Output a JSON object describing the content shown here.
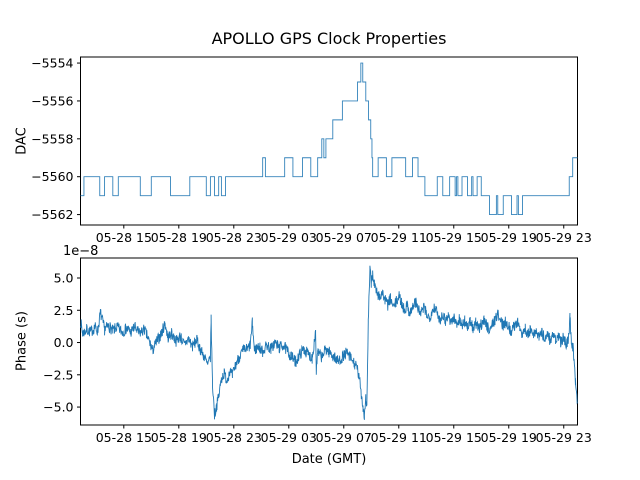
{
  "figure": {
    "title": "APOLLO GPS Clock Properties",
    "line_color": "#1f77b4",
    "background": "#ffffff"
  },
  "chart_data": [
    {
      "type": "line",
      "subtype": "step-post",
      "title": "APOLLO GPS Clock Properties",
      "ylabel": "DAC",
      "x_unit": "hours since 05-28 00:00 GMT",
      "xlim": [
        11.85,
        48.0
      ],
      "ylim": [
        -5562.55,
        -5553.68
      ],
      "grid": false,
      "legend": "none",
      "line_color": "#1f77b4",
      "yticks": [
        {
          "v": -5554,
          "label": "−5554"
        },
        {
          "v": -5556,
          "label": "−5556"
        },
        {
          "v": -5558,
          "label": "−5558"
        },
        {
          "v": -5560,
          "label": "−5560"
        },
        {
          "v": -5562,
          "label": "−5562"
        }
      ],
      "xticks": [
        {
          "v": 15,
          "label": "05-28 15"
        },
        {
          "v": 19,
          "label": "05-28 19"
        },
        {
          "v": 23,
          "label": "05-28 23"
        },
        {
          "v": 27,
          "label": "05-29 03"
        },
        {
          "v": 31,
          "label": "05-29 07"
        },
        {
          "v": 35,
          "label": "05-29 11"
        },
        {
          "v": 39,
          "label": "05-29 15"
        },
        {
          "v": 43,
          "label": "05-29 19"
        },
        {
          "v": 47,
          "label": "05-29 23"
        }
      ],
      "points": [
        [
          11.85,
          -5561
        ],
        [
          12.1,
          -5560
        ],
        [
          13.25,
          -5561
        ],
        [
          13.6,
          -5560
        ],
        [
          14.2,
          -5561
        ],
        [
          14.6,
          -5560
        ],
        [
          16.2,
          -5561
        ],
        [
          17.0,
          -5560
        ],
        [
          18.4,
          -5561
        ],
        [
          19.8,
          -5560
        ],
        [
          21.0,
          -5561
        ],
        [
          21.3,
          -5560
        ],
        [
          21.6,
          -5561
        ],
        [
          21.9,
          -5560
        ],
        [
          22.1,
          -5561
        ],
        [
          22.4,
          -5560
        ],
        [
          25.1,
          -5559
        ],
        [
          25.3,
          -5560
        ],
        [
          26.7,
          -5559
        ],
        [
          27.3,
          -5560
        ],
        [
          28.0,
          -5559
        ],
        [
          28.6,
          -5560
        ],
        [
          29.1,
          -5559
        ],
        [
          29.4,
          -5558
        ],
        [
          29.55,
          -5559
        ],
        [
          29.7,
          -5558
        ],
        [
          30.2,
          -5557
        ],
        [
          30.9,
          -5556
        ],
        [
          32.0,
          -5555
        ],
        [
          32.24,
          -5554
        ],
        [
          32.38,
          -5555
        ],
        [
          32.6,
          -5556
        ],
        [
          32.8,
          -5557
        ],
        [
          32.96,
          -5558
        ],
        [
          33.05,
          -5559
        ],
        [
          33.1,
          -5560
        ],
        [
          33.5,
          -5559
        ],
        [
          34.1,
          -5560
        ],
        [
          34.5,
          -5559
        ],
        [
          35.5,
          -5560
        ],
        [
          36.0,
          -5559
        ],
        [
          36.4,
          -5560
        ],
        [
          36.9,
          -5561
        ],
        [
          37.8,
          -5560
        ],
        [
          38.2,
          -5561
        ],
        [
          38.7,
          -5560
        ],
        [
          39.1,
          -5561
        ],
        [
          39.2,
          -5560
        ],
        [
          39.3,
          -5561
        ],
        [
          39.6,
          -5560
        ],
        [
          40.0,
          -5561
        ],
        [
          40.3,
          -5560
        ],
        [
          40.4,
          -5561
        ],
        [
          40.7,
          -5560
        ],
        [
          41.0,
          -5561
        ],
        [
          41.6,
          -5562
        ],
        [
          42.1,
          -5561
        ],
        [
          42.2,
          -5562
        ],
        [
          42.6,
          -5561
        ],
        [
          43.2,
          -5562
        ],
        [
          43.6,
          -5561
        ],
        [
          43.7,
          -5562
        ],
        [
          44.0,
          -5561
        ],
        [
          47.4,
          -5560
        ],
        [
          47.65,
          -5559
        ],
        [
          48.0,
          -5559
        ]
      ]
    },
    {
      "type": "line",
      "subtype": "noisy",
      "ylabel": "Phase (s)",
      "xlabel": "Date (GMT)",
      "offset_text": "1e−8",
      "value_scale": "1e-8",
      "xlim": [
        11.85,
        48.0
      ],
      "ylim": [
        -6.39,
        6.55
      ],
      "grid": false,
      "legend": "none",
      "line_color": "#1f77b4",
      "noise_amplitude": 0.45,
      "noise_seed": 7,
      "yticks": [
        {
          "v": 5.0,
          "label": "5.0"
        },
        {
          "v": 2.5,
          "label": "2.5"
        },
        {
          "v": 0.0,
          "label": "0.0"
        },
        {
          "v": -2.5,
          "label": "−2.5"
        },
        {
          "v": -5.0,
          "label": "−5.0"
        }
      ],
      "xticks": [
        {
          "v": 15,
          "label": "05-28 15"
        },
        {
          "v": 19,
          "label": "05-28 19"
        },
        {
          "v": 23,
          "label": "05-28 23"
        },
        {
          "v": 27,
          "label": "05-29 03"
        },
        {
          "v": 31,
          "label": "05-29 07"
        },
        {
          "v": 35,
          "label": "05-29 11"
        },
        {
          "v": 39,
          "label": "05-29 15"
        },
        {
          "v": 43,
          "label": "05-29 19"
        },
        {
          "v": 47,
          "label": "05-29 23"
        }
      ],
      "trend_points": [
        [
          11.85,
          1.7
        ],
        [
          12.0,
          0.7
        ],
        [
          12.3,
          1.0
        ],
        [
          12.6,
          0.8
        ],
        [
          12.9,
          1.2
        ],
        [
          13.1,
          0.9
        ],
        [
          13.3,
          2.3
        ],
        [
          13.6,
          1.0
        ],
        [
          13.9,
          1.3
        ],
        [
          14.2,
          0.9
        ],
        [
          14.5,
          1.2
        ],
        [
          14.9,
          0.8
        ],
        [
          15.2,
          1.1
        ],
        [
          15.5,
          0.8
        ],
        [
          15.8,
          1.2
        ],
        [
          16.1,
          0.7
        ],
        [
          16.5,
          1.0
        ],
        [
          16.8,
          0.2
        ],
        [
          17.1,
          -0.6
        ],
        [
          17.4,
          0.1
        ],
        [
          17.7,
          0.6
        ],
        [
          18.0,
          1.5
        ],
        [
          18.2,
          0.4
        ],
        [
          18.5,
          0.7
        ],
        [
          18.8,
          0.1
        ],
        [
          19.1,
          0.5
        ],
        [
          19.4,
          -0.2
        ],
        [
          19.7,
          0.3
        ],
        [
          20.0,
          -0.3
        ],
        [
          20.3,
          0.2
        ],
        [
          20.6,
          -0.6
        ],
        [
          20.9,
          -1.2
        ],
        [
          21.1,
          -1.8
        ],
        [
          21.3,
          -1.2
        ],
        [
          21.35,
          1.8
        ],
        [
          21.45,
          -3.2
        ],
        [
          21.6,
          -5.6
        ],
        [
          21.75,
          -4.9
        ],
        [
          21.9,
          -4.2
        ],
        [
          22.1,
          -2.8
        ],
        [
          22.3,
          -2.4
        ],
        [
          22.5,
          -2.9
        ],
        [
          22.7,
          -2.2
        ],
        [
          22.9,
          -2.6
        ],
        [
          23.1,
          -1.8
        ],
        [
          23.4,
          -1.1
        ],
        [
          23.7,
          -0.6
        ],
        [
          24.0,
          -0.5
        ],
        [
          24.2,
          -0.2
        ],
        [
          24.35,
          1.5
        ],
        [
          24.5,
          -0.6
        ],
        [
          24.8,
          -0.3
        ],
        [
          25.1,
          -0.7
        ],
        [
          25.4,
          -0.2
        ],
        [
          25.7,
          -0.5
        ],
        [
          26.0,
          0.0
        ],
        [
          26.3,
          -0.4
        ],
        [
          26.6,
          -0.2
        ],
        [
          26.9,
          -0.7
        ],
        [
          27.2,
          -1.1
        ],
        [
          27.5,
          -1.5
        ],
        [
          27.8,
          -0.9
        ],
        [
          28.1,
          -0.5
        ],
        [
          28.4,
          -0.9
        ],
        [
          28.7,
          -1.2
        ],
        [
          28.95,
          0.9
        ],
        [
          29.0,
          -2.2
        ],
        [
          29.1,
          -0.8
        ],
        [
          29.4,
          -1.1
        ],
        [
          29.7,
          -0.5
        ],
        [
          30.0,
          -0.8
        ],
        [
          30.3,
          -1.1
        ],
        [
          30.6,
          -1.5
        ],
        [
          30.9,
          -1.1
        ],
        [
          31.2,
          -0.8
        ],
        [
          31.5,
          -1.2
        ],
        [
          31.8,
          -1.7
        ],
        [
          32.0,
          -2.1
        ],
        [
          32.2,
          -3.3
        ],
        [
          32.4,
          -5.0
        ],
        [
          32.5,
          -5.7
        ],
        [
          32.6,
          -4.2
        ],
        [
          32.68,
          -5.0
        ],
        [
          32.78,
          1.5
        ],
        [
          32.9,
          5.6
        ],
        [
          33.0,
          4.6
        ],
        [
          33.1,
          5.3
        ],
        [
          33.25,
          4.4
        ],
        [
          33.4,
          3.9
        ],
        [
          33.6,
          3.5
        ],
        [
          33.8,
          3.9
        ],
        [
          34.0,
          3.3
        ],
        [
          34.2,
          2.9
        ],
        [
          34.4,
          3.4
        ],
        [
          34.6,
          2.7
        ],
        [
          34.8,
          3.1
        ],
        [
          35.0,
          3.6
        ],
        [
          35.2,
          3.1
        ],
        [
          35.4,
          2.5
        ],
        [
          35.6,
          2.9
        ],
        [
          35.8,
          2.3
        ],
        [
          36.0,
          2.7
        ],
        [
          36.2,
          3.2
        ],
        [
          36.4,
          2.6
        ],
        [
          36.6,
          2.2
        ],
        [
          36.8,
          2.7
        ],
        [
          37.0,
          2.3
        ],
        [
          37.2,
          1.9
        ],
        [
          37.4,
          2.4
        ],
        [
          37.6,
          2.8
        ],
        [
          37.8,
          2.2
        ],
        [
          38.0,
          1.8
        ],
        [
          38.2,
          2.2
        ],
        [
          38.4,
          1.7
        ],
        [
          38.6,
          2.1
        ],
        [
          38.8,
          1.6
        ],
        [
          39.0,
          1.9
        ],
        [
          39.2,
          1.5
        ],
        [
          39.4,
          1.8
        ],
        [
          39.6,
          1.4
        ],
        [
          39.8,
          1.7
        ],
        [
          40.0,
          1.2
        ],
        [
          40.2,
          1.6
        ],
        [
          40.4,
          1.1
        ],
        [
          40.6,
          1.5
        ],
        [
          40.8,
          1.0
        ],
        [
          41.0,
          1.4
        ],
        [
          41.2,
          1.8
        ],
        [
          41.4,
          1.3
        ],
        [
          41.6,
          1.0
        ],
        [
          41.8,
          1.4
        ],
        [
          42.0,
          1.8
        ],
        [
          42.2,
          2.2
        ],
        [
          42.4,
          1.7
        ],
        [
          42.6,
          1.3
        ],
        [
          42.8,
          1.7
        ],
        [
          43.0,
          1.2
        ],
        [
          43.2,
          0.8
        ],
        [
          43.4,
          1.3
        ],
        [
          43.6,
          1.6
        ],
        [
          43.8,
          1.1
        ],
        [
          44.0,
          0.7
        ],
        [
          44.2,
          1.1
        ],
        [
          44.4,
          0.6
        ],
        [
          44.6,
          1.0
        ],
        [
          44.8,
          0.5
        ],
        [
          45.0,
          0.9
        ],
        [
          45.2,
          0.4
        ],
        [
          45.4,
          0.8
        ],
        [
          45.6,
          0.3
        ],
        [
          45.8,
          0.7
        ],
        [
          46.0,
          0.2
        ],
        [
          46.2,
          0.6
        ],
        [
          46.4,
          0.1
        ],
        [
          46.6,
          0.5
        ],
        [
          46.8,
          0.0
        ],
        [
          47.0,
          0.4
        ],
        [
          47.2,
          -0.1
        ],
        [
          47.35,
          0.4
        ],
        [
          47.45,
          1.9
        ],
        [
          47.55,
          0.2
        ],
        [
          47.7,
          -0.6
        ],
        [
          47.85,
          -2.9
        ],
        [
          48.0,
          -4.8
        ]
      ]
    }
  ]
}
